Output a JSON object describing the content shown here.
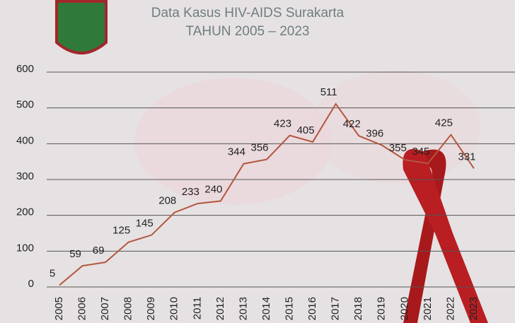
{
  "chart_data": {
    "type": "line",
    "title": "Data Kasus HIV-AIDS Surakarta TAHUN 2005 – 2023",
    "categories": [
      "2005",
      "2006",
      "2007",
      "2008",
      "2009",
      "2010",
      "2011",
      "2012",
      "2013",
      "2014",
      "2015",
      "2016",
      "2017",
      "2018",
      "2019",
      "2020",
      "2021",
      "2022",
      "2023"
    ],
    "values": [
      5,
      59,
      69,
      125,
      145,
      208,
      233,
      240,
      344,
      356,
      423,
      405,
      511,
      422,
      396,
      355,
      345,
      425,
      331
    ],
    "color": "#b4563f",
    "ylim": [
      0,
      600
    ],
    "yticks": [
      0,
      100,
      200,
      300,
      400,
      500,
      600
    ],
    "grid": true
  }
}
